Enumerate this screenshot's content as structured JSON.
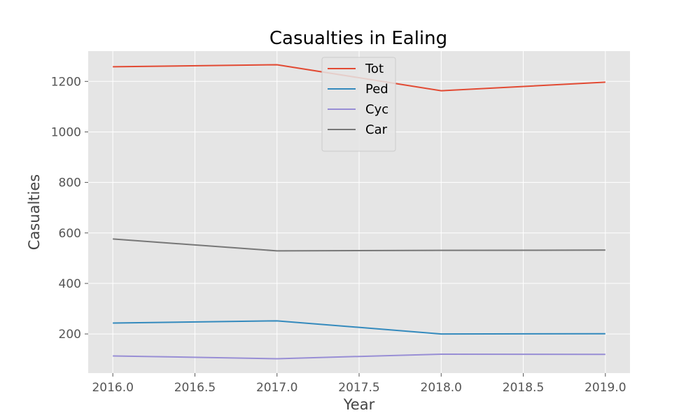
{
  "chart_data": {
    "type": "line",
    "title": "Casualties in Ealing",
    "xlabel": "Year",
    "ylabel": "Casualties",
    "x": [
      2016,
      2017,
      2018,
      2019
    ],
    "xlim": [
      2015.85,
      2019.15
    ],
    "ylim": [
      45,
      1320
    ],
    "xticks": [
      "2016.0",
      "2016.5",
      "2017.0",
      "2017.5",
      "2018.0",
      "2018.5",
      "2019.0"
    ],
    "xtick_values": [
      2016.0,
      2016.5,
      2017.0,
      2017.5,
      2018.0,
      2018.5,
      2019.0
    ],
    "yticks": [
      "200",
      "400",
      "600",
      "800",
      "1000",
      "1200"
    ],
    "ytick_values": [
      200,
      400,
      600,
      800,
      1000,
      1200
    ],
    "grid": true,
    "legend_position": "top-center",
    "series": [
      {
        "name": "Tot",
        "color": "#E24A33",
        "values": [
          1258,
          1266,
          1163,
          1197
        ]
      },
      {
        "name": "Ped",
        "color": "#348ABD",
        "values": [
          243,
          252,
          200,
          201
        ]
      },
      {
        "name": "Cyc",
        "color": "#988ED5",
        "values": [
          113,
          102,
          120,
          119
        ]
      },
      {
        "name": "Car",
        "color": "#777777",
        "values": [
          576,
          529,
          531,
          532
        ]
      }
    ]
  }
}
